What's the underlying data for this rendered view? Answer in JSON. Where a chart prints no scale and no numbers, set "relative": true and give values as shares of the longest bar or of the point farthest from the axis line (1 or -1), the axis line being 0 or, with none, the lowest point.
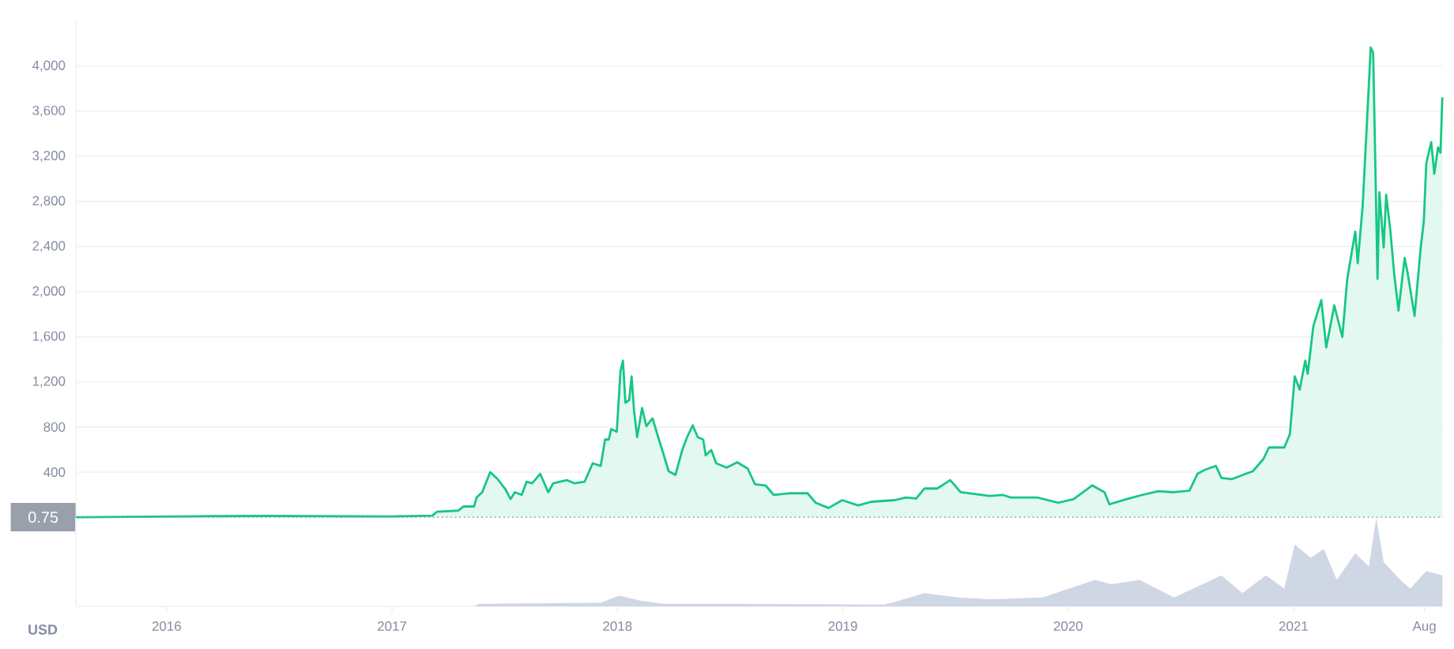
{
  "chart_data": [
    {
      "type": "area",
      "xlim": [
        "2015-08-07",
        "2021-08-31"
      ],
      "ylim": [
        0,
        4400
      ],
      "x": [
        "2015-08-07",
        "2016-03-15",
        "2016-06-15",
        "2016-12-31",
        "2017-03-07",
        "2017-03-15",
        "2017-04-18",
        "2017-04-27",
        "2017-05-14",
        "2017-05-18",
        "2017-05-27",
        "2017-06-09",
        "2017-06-21",
        "2017-07-04",
        "2017-07-12",
        "2017-07-19",
        "2017-07-30",
        "2017-08-07",
        "2017-08-16",
        "2017-08-29",
        "2017-09-11",
        "2017-09-19",
        "2017-10-11",
        "2017-10-23",
        "2017-11-09",
        "2017-11-22",
        "2017-12-05",
        "2017-12-12",
        "2017-12-18",
        "2017-12-22",
        "2017-12-31",
        "2018-01-06",
        "2018-01-10",
        "2018-01-14",
        "2018-01-20",
        "2018-01-24",
        "2018-01-28",
        "2018-02-02",
        "2018-02-10",
        "2018-02-17",
        "2018-02-23",
        "2018-02-27",
        "2018-03-08",
        "2018-03-16",
        "2018-03-25",
        "2018-04-05",
        "2018-04-16",
        "2018-04-24",
        "2018-05-03",
        "2018-05-11",
        "2018-05-20",
        "2018-05-24",
        "2018-06-02",
        "2018-06-10",
        "2018-06-27",
        "2018-07-14",
        "2018-07-31",
        "2018-08-12",
        "2018-08-29",
        "2018-09-11",
        "2018-10-06",
        "2018-11-05",
        "2018-11-18",
        "2018-12-09",
        "2018-12-31",
        "2019-01-26",
        "2019-02-16",
        "2019-03-26",
        "2019-04-13",
        "2019-04-30",
        "2019-05-13",
        "2019-06-03",
        "2019-06-24",
        "2019-07-11",
        "2019-08-27",
        "2019-09-17",
        "2019-09-30",
        "2019-11-12",
        "2019-12-16",
        "2020-01-10",
        "2020-02-09",
        "2020-02-29",
        "2020-03-08",
        "2020-04-05",
        "2020-05-01",
        "2020-05-26",
        "2020-06-21",
        "2020-07-16",
        "2020-07-29",
        "2020-08-11",
        "2020-08-28",
        "2020-09-06",
        "2020-09-23",
        "2020-10-27",
        "2020-11-13",
        "2020-11-22",
        "2020-12-17",
        "2020-12-26",
        "2021-01-03",
        "2021-01-11",
        "2021-01-20",
        "2021-01-24",
        "2021-02-02",
        "2021-02-15",
        "2021-02-23",
        "2021-03-08",
        "2021-03-21",
        "2021-03-29",
        "2021-04-11",
        "2021-04-15",
        "2021-04-23",
        "2021-04-30",
        "2021-05-06",
        "2021-05-10",
        "2021-05-17",
        "2021-05-20",
        "2021-05-27",
        "2021-05-31",
        "2021-06-07",
        "2021-06-13",
        "2021-06-20",
        "2021-06-30",
        "2021-07-05",
        "2021-07-16",
        "2021-07-26",
        "2021-07-31",
        "2021-08-04",
        "2021-08-12",
        "2021-08-17",
        "2021-08-23",
        "2021-08-27",
        "2021-08-30"
      ],
      "series": [
        {
          "color": "#16c784",
          "values": [
            1,
            10,
            12,
            8,
            15,
            50,
            59,
            96,
            96,
            176,
            222,
            400,
            339,
            246,
            162,
            222,
            199,
            316,
            302,
            386,
            222,
            302,
            330,
            302,
            316,
            479,
            456,
            689,
            689,
            782,
            759,
            1296,
            1389,
            1016,
            1039,
            1249,
            946,
            712,
            969,
            806,
            852,
            876,
            712,
            572,
            409,
            376,
            596,
            712,
            815,
            712,
            689,
            549,
            596,
            479,
            440,
            488,
            432,
            292,
            283,
            199,
            213,
            213,
            129,
            83,
            152,
            106,
            138,
            152,
            176,
            166,
            255,
            255,
            330,
            222,
            190,
            199,
            176,
            176,
            129,
            162,
            283,
            222,
            115,
            162,
            199,
            232,
            222,
            236,
            386,
            423,
            456,
            348,
            339,
            409,
            516,
            619,
            619,
            736,
            1249,
            1132,
            1389,
            1272,
            1692,
            1926,
            1506,
            1879,
            1599,
            2113,
            2533,
            2253,
            2766,
            3513,
            4166,
            4119,
            2113,
            2883,
            2393,
            2859,
            2533,
            2159,
            1833,
            2299,
            2159,
            1786,
            2393,
            2626,
            3139,
            3326,
            3046,
            3279,
            3233,
            3723
          ]
        }
      ],
      "yticks": [
        {
          "value": 400,
          "label": "400"
        },
        {
          "value": 800,
          "label": "800"
        },
        {
          "value": 1200,
          "label": "1,200"
        },
        {
          "value": 1600,
          "label": "1,600"
        },
        {
          "value": 2000,
          "label": "2,000"
        },
        {
          "value": 2400,
          "label": "2,400"
        },
        {
          "value": 2800,
          "label": "2,800"
        },
        {
          "value": 3200,
          "label": "3,200"
        },
        {
          "value": 3600,
          "label": "3,600"
        },
        {
          "value": 4000,
          "label": "4,000"
        }
      ],
      "grid": "y",
      "tick_labels": "y",
      "ref_lines": [
        {
          "axis": "y",
          "value": 0.75,
          "label": "0.75",
          "color": "#9aa0ab",
          "line_style": "dotted"
        }
      ]
    },
    {
      "type": "area",
      "relative": true,
      "xlim": [
        "2015-08-07",
        "2021-08-31"
      ],
      "x": [
        "2015-08-07",
        "2017-05-14",
        "2017-05-22",
        "2017-12-05",
        "2018-01-04",
        "2018-02-10",
        "2018-03-16",
        "2018-06-27",
        "2019-03-09",
        "2019-03-26",
        "2019-05-13",
        "2019-07-07",
        "2019-08-27",
        "2019-11-20",
        "2020-02-14",
        "2020-03-11",
        "2020-04-26",
        "2020-06-21",
        "2020-09-06",
        "2020-10-10",
        "2020-11-17",
        "2020-12-17",
        "2021-01-03",
        "2021-01-20",
        "2021-01-29",
        "2021-02-19",
        "2021-03-12",
        "2021-04-11",
        "2021-05-03",
        "2021-05-15",
        "2021-05-27",
        "2021-06-23",
        "2021-07-09",
        "2021-08-04",
        "2021-08-30"
      ],
      "series": [
        {
          "color": "#cfd6e4",
          "values": [
            0,
            0,
            0.03,
            0.04,
            0.12,
            0.06,
            0.03,
            0.03,
            0.02,
            0.05,
            0.15,
            0.1,
            0.08,
            0.1,
            0.3,
            0.25,
            0.3,
            0.1,
            0.35,
            0.15,
            0.35,
            0.2,
            0.7,
            0.6,
            0.55,
            0.65,
            0.3,
            0.6,
            0.45,
            1.0,
            0.5,
            0.3,
            0.2,
            0.4,
            0.35
          ]
        }
      ],
      "xticks": [
        {
          "value": "2016",
          "label": "2016"
        },
        {
          "value": "2017",
          "label": "2017"
        },
        {
          "value": "2018",
          "label": "2018"
        },
        {
          "value": "2019",
          "label": "2019"
        },
        {
          "value": "2020",
          "label": "2020"
        },
        {
          "value": "2021",
          "label": "2021"
        },
        {
          "value": "2021-08",
          "label": "Aug"
        }
      ],
      "tick_labels": "x",
      "annotations": [
        "USD"
      ]
    }
  ]
}
